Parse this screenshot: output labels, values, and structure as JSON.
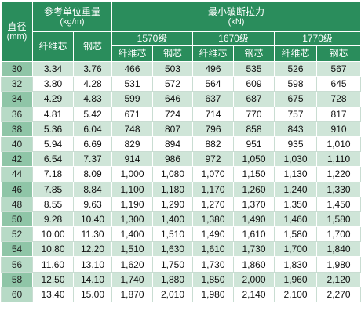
{
  "header": {
    "diameter_label": "直径",
    "diameter_unit": "(mm)",
    "weight_label": "参考单位重量",
    "weight_unit": "(kg/m)",
    "weight_fiber": "纤维芯",
    "weight_steel": "钢芯",
    "strength_label": "最小破断拉力",
    "strength_unit": "(kN)",
    "grades": [
      "1570级",
      "1670级",
      "1770级"
    ],
    "sub_fiber": "纤维芯",
    "sub_steel": "钢芯"
  },
  "rows": [
    [
      "30",
      "3.34",
      "3.76",
      "466",
      "503",
      "496",
      "535",
      "526",
      "567"
    ],
    [
      "32",
      "3.80",
      "4.28",
      "531",
      "572",
      "564",
      "609",
      "598",
      "645"
    ],
    [
      "34",
      "4.29",
      "4.83",
      "599",
      "646",
      "637",
      "687",
      "675",
      "728"
    ],
    [
      "36",
      "4.81",
      "5.42",
      "671",
      "724",
      "714",
      "770",
      "757",
      "817"
    ],
    [
      "38",
      "5.36",
      "6.04",
      "748",
      "807",
      "796",
      "858",
      "843",
      "910"
    ],
    [
      "40",
      "5.94",
      "6.69",
      "829",
      "894",
      "882",
      "951",
      "935",
      "1,010"
    ],
    [
      "42",
      "6.54",
      "7.37",
      "914",
      "986",
      "972",
      "1,050",
      "1,030",
      "1,110"
    ],
    [
      "44",
      "7.18",
      "8.09",
      "1,000",
      "1,080",
      "1,070",
      "1,150",
      "1,130",
      "1,220"
    ],
    [
      "46",
      "7.85",
      "8.84",
      "1,100",
      "1,180",
      "1,170",
      "1,260",
      "1,240",
      "1,330"
    ],
    [
      "48",
      "8.55",
      "9.63",
      "1,190",
      "1,290",
      "1,270",
      "1,370",
      "1,350",
      "1,450"
    ],
    [
      "50",
      "9.28",
      "10.40",
      "1,300",
      "1,400",
      "1,380",
      "1,490",
      "1,460",
      "1,580"
    ],
    [
      "52",
      "10.00",
      "11.30",
      "1,400",
      "1,510",
      "1,490",
      "1,610",
      "1,580",
      "1,700"
    ],
    [
      "54",
      "10.80",
      "12.20",
      "1,510",
      "1,630",
      "1,610",
      "1,730",
      "1,700",
      "1,840"
    ],
    [
      "56",
      "11.60",
      "13.10",
      "1,620",
      "1,750",
      "1,730",
      "1,860",
      "1,830",
      "1,980"
    ],
    [
      "58",
      "12.50",
      "14.10",
      "1,740",
      "1,880",
      "1,850",
      "2,000",
      "1,960",
      "2,120"
    ],
    [
      "60",
      "13.40",
      "15.00",
      "1,870",
      "2,010",
      "1,980",
      "2,140",
      "2,100",
      "2,270"
    ]
  ],
  "colors": {
    "header_bg": "#2a8d5c",
    "row_dark": "#cfe5d8",
    "row_light": "#ffffff",
    "diameter_col": "#8fc5a7"
  }
}
